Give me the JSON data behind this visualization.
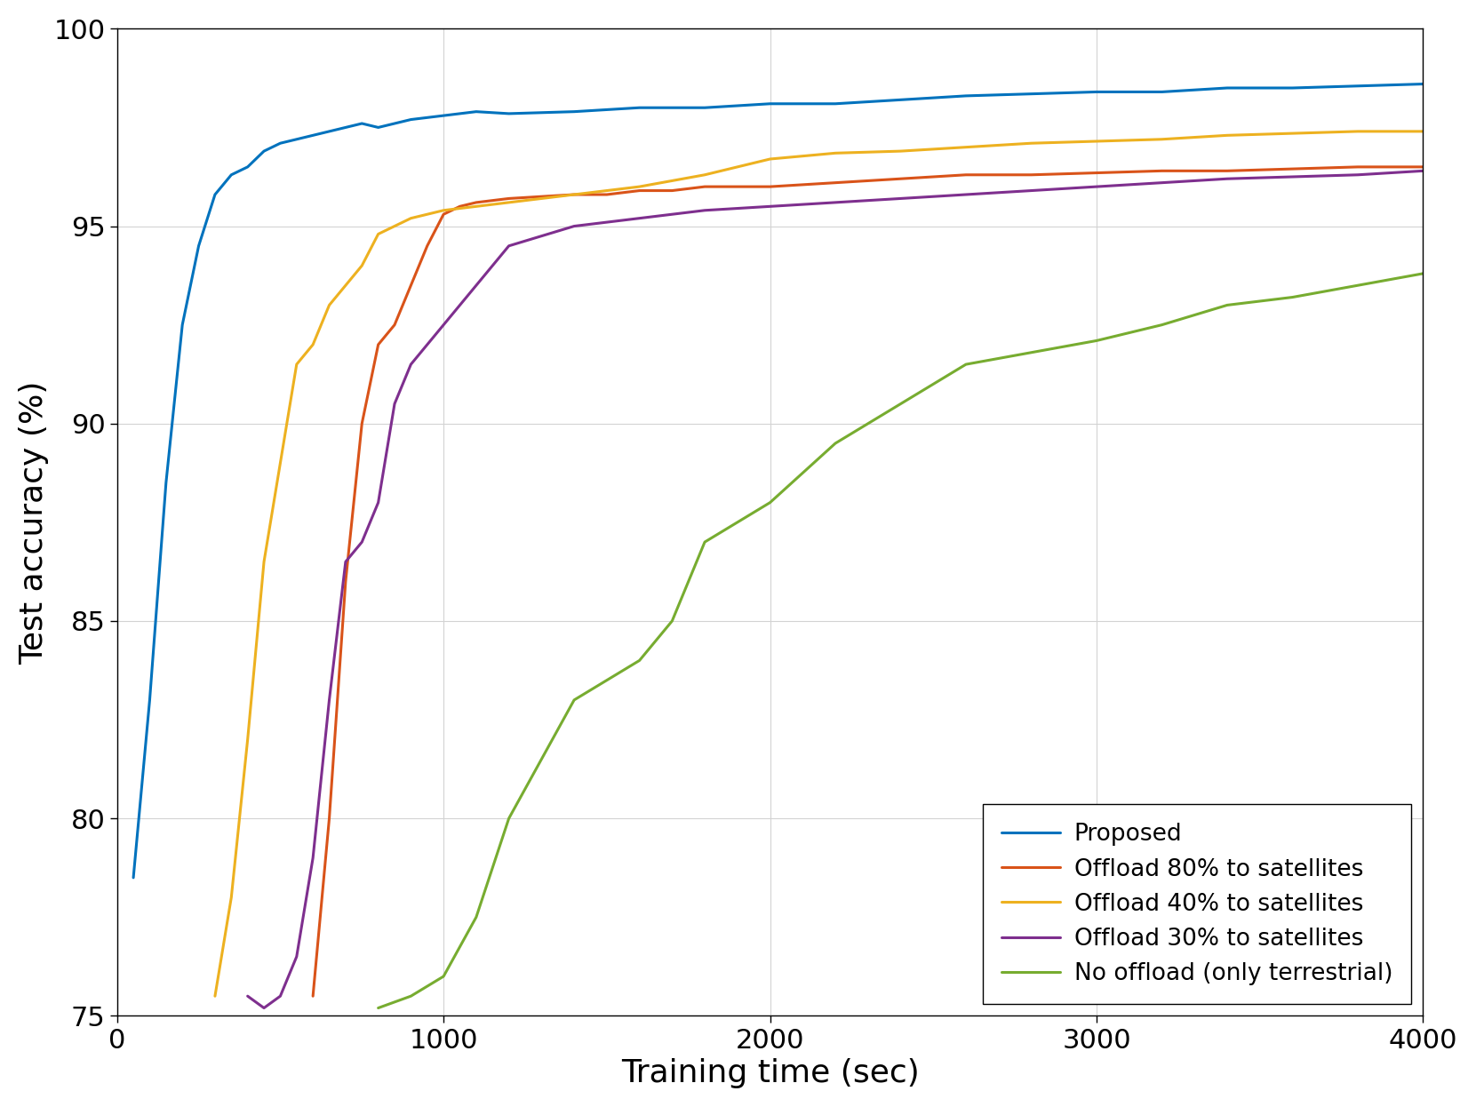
{
  "title": "",
  "xlabel": "Training time (sec)",
  "ylabel": "Test accuracy (%)",
  "xlim": [
    0,
    4000
  ],
  "ylim": [
    75,
    100
  ],
  "xticks": [
    0,
    1000,
    2000,
    3000,
    4000
  ],
  "yticks": [
    75,
    80,
    85,
    90,
    95,
    100
  ],
  "grid": true,
  "background_color": "#ffffff",
  "legend_loc": "lower right",
  "series": [
    {
      "label": "Proposed",
      "color": "#0072BD",
      "linewidth": 2.2,
      "x": [
        50,
        100,
        150,
        200,
        250,
        300,
        350,
        400,
        450,
        500,
        550,
        600,
        650,
        700,
        750,
        800,
        900,
        1000,
        1100,
        1200,
        1400,
        1600,
        1800,
        2000,
        2200,
        2400,
        2600,
        2800,
        3000,
        3200,
        3400,
        3600,
        3800,
        4000
      ],
      "y": [
        78.5,
        83.0,
        88.5,
        92.5,
        94.5,
        95.8,
        96.3,
        96.5,
        96.9,
        97.1,
        97.2,
        97.3,
        97.4,
        97.5,
        97.6,
        97.5,
        97.7,
        97.8,
        97.9,
        97.85,
        97.9,
        98.0,
        98.0,
        98.1,
        98.1,
        98.2,
        98.3,
        98.35,
        98.4,
        98.4,
        98.5,
        98.5,
        98.55,
        98.6
      ]
    },
    {
      "label": "Offload 80% to satellites",
      "color": "#D95319",
      "linewidth": 2.2,
      "x": [
        600,
        650,
        700,
        750,
        800,
        850,
        900,
        950,
        1000,
        1050,
        1100,
        1200,
        1300,
        1400,
        1500,
        1600,
        1700,
        1800,
        1900,
        2000,
        2200,
        2400,
        2600,
        2800,
        3000,
        3200,
        3400,
        3600,
        3800,
        4000
      ],
      "y": [
        75.5,
        80.0,
        86.0,
        90.0,
        92.0,
        92.5,
        93.5,
        94.5,
        95.3,
        95.5,
        95.6,
        95.7,
        95.75,
        95.8,
        95.8,
        95.9,
        95.9,
        96.0,
        96.0,
        96.0,
        96.1,
        96.2,
        96.3,
        96.3,
        96.35,
        96.4,
        96.4,
        96.45,
        96.5,
        96.5
      ]
    },
    {
      "label": "Offload 40% to satellites",
      "color": "#EDB120",
      "linewidth": 2.2,
      "x": [
        300,
        350,
        400,
        450,
        500,
        550,
        600,
        650,
        700,
        750,
        800,
        900,
        1000,
        1100,
        1200,
        1400,
        1600,
        1800,
        2000,
        2200,
        2400,
        2600,
        2800,
        3000,
        3200,
        3400,
        3600,
        3800,
        4000
      ],
      "y": [
        75.5,
        78.0,
        82.0,
        86.5,
        89.0,
        91.5,
        92.0,
        93.0,
        93.5,
        94.0,
        94.8,
        95.2,
        95.4,
        95.5,
        95.6,
        95.8,
        96.0,
        96.3,
        96.7,
        96.85,
        96.9,
        97.0,
        97.1,
        97.15,
        97.2,
        97.3,
        97.35,
        97.4,
        97.4
      ]
    },
    {
      "label": "Offload 30% to satellites",
      "color": "#7E2F8E",
      "linewidth": 2.2,
      "x": [
        400,
        450,
        500,
        550,
        600,
        650,
        700,
        750,
        800,
        850,
        900,
        950,
        1000,
        1100,
        1200,
        1400,
        1600,
        1800,
        2000,
        2200,
        2400,
        2600,
        2800,
        3000,
        3200,
        3400,
        3600,
        3800,
        4000
      ],
      "y": [
        75.5,
        75.2,
        75.5,
        76.5,
        79.0,
        83.0,
        86.5,
        87.0,
        88.0,
        90.5,
        91.5,
        92.0,
        92.5,
        93.5,
        94.5,
        95.0,
        95.2,
        95.4,
        95.5,
        95.6,
        95.7,
        95.8,
        95.9,
        96.0,
        96.1,
        96.2,
        96.25,
        96.3,
        96.4
      ]
    },
    {
      "label": "No offload (only terrestrial)",
      "color": "#77AC30",
      "linewidth": 2.2,
      "x": [
        800,
        900,
        1000,
        1100,
        1200,
        1300,
        1400,
        1500,
        1600,
        1700,
        1800,
        1900,
        2000,
        2200,
        2400,
        2600,
        2800,
        3000,
        3200,
        3400,
        3600,
        3800,
        4000
      ],
      "y": [
        75.2,
        75.5,
        76.0,
        77.5,
        80.0,
        81.5,
        83.0,
        83.5,
        84.0,
        85.0,
        87.0,
        87.5,
        88.0,
        89.5,
        90.5,
        91.5,
        91.8,
        92.1,
        92.5,
        93.0,
        93.2,
        93.5,
        93.8
      ]
    }
  ],
  "figwidth": 16.61,
  "figheight": 12.46,
  "dpi": 100,
  "label_fontsize": 26,
  "tick_fontsize": 22,
  "legend_fontsize": 19
}
